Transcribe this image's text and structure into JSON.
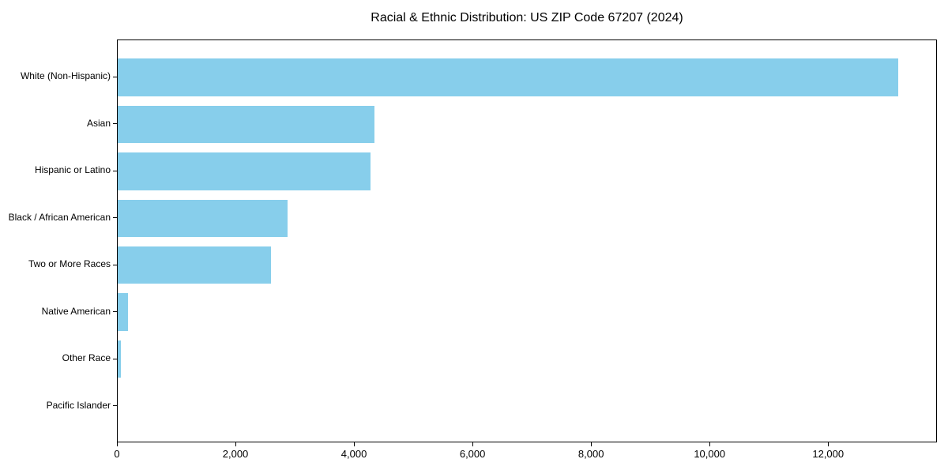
{
  "chart_data": {
    "type": "bar",
    "orientation": "horizontal",
    "title": "Racial & Ethnic Distribution: US ZIP Code 67207 (2024)",
    "categories": [
      "White (Non-Hispanic)",
      "Asian",
      "Hispanic or Latino",
      "Black / African American",
      "Two or More Races",
      "Native American",
      "Other Race",
      "Pacific Islander"
    ],
    "values": [
      13170,
      4330,
      4270,
      2870,
      2590,
      170,
      50,
      0
    ],
    "xlabel": "",
    "ylabel": "",
    "x_ticks": [
      0,
      2000,
      4000,
      6000,
      8000,
      10000,
      12000
    ],
    "x_tick_labels": [
      "0",
      "2,000",
      "4,000",
      "6,000",
      "8,000",
      "10,000",
      "12,000"
    ],
    "xlim": [
      0,
      13836
    ],
    "bar_color": "#87CEEB",
    "grid": false,
    "legend": null,
    "background_color": "#ffffff",
    "axis_color": "#000000"
  }
}
